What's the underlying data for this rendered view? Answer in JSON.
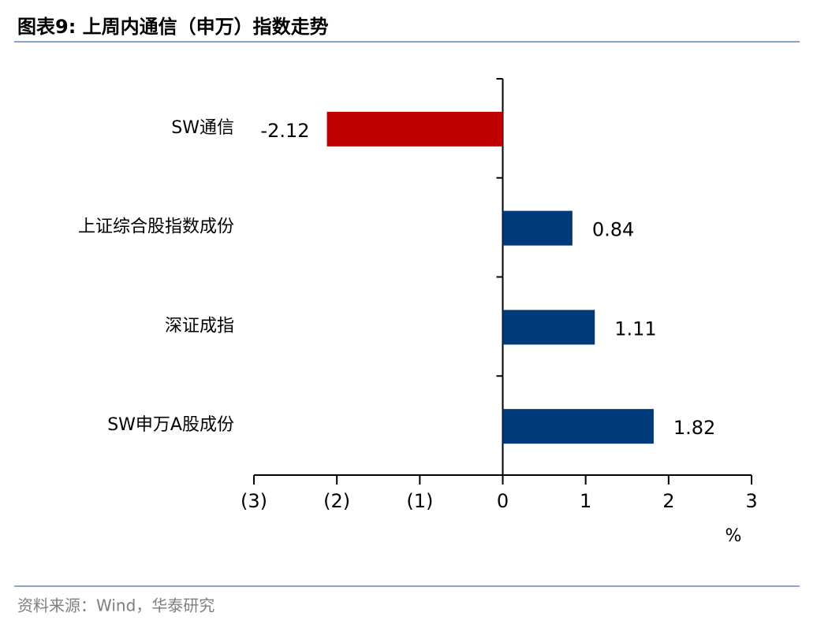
{
  "chart_data": {
    "type": "hbar",
    "title": "图表9:  上周内通信（申万）指数走势",
    "categories": [
      "SW通信",
      "上证综合股指数成份",
      "深证成指",
      "SW申万A股成份"
    ],
    "values": [
      -2.12,
      0.84,
      1.11,
      1.82
    ],
    "colors": [
      "#c00000",
      "#003a7a",
      "#003a7a",
      "#003a7a"
    ],
    "xlim": [
      -3,
      3
    ],
    "xticks": [
      {
        "value": -3,
        "label": "(3)"
      },
      {
        "value": -2,
        "label": "(2)"
      },
      {
        "value": -1,
        "label": "(1)"
      },
      0,
      1,
      2,
      3
    ],
    "xlabel": "%",
    "source": "资料来源：Wind，华泰研究"
  }
}
